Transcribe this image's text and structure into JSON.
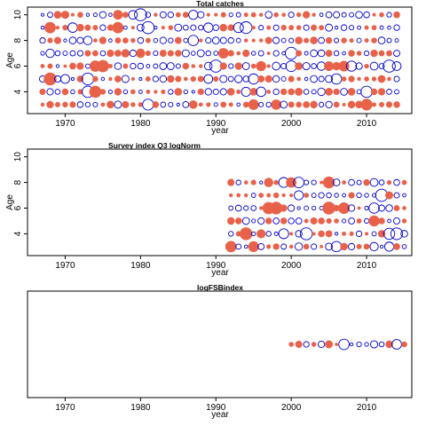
{
  "colors": {
    "positive": "#e8624a",
    "negative": "#0000cc",
    "axis": "#000000"
  },
  "chart_data": [
    {
      "type": "scatter",
      "subtype": "bubble-residuals",
      "title": "Total catches",
      "xlabel": "year",
      "ylabel": "Age",
      "xlim": [
        1965,
        2016
      ],
      "ylim": [
        2.3,
        10.6
      ],
      "x_ticks": [
        1970,
        1980,
        1990,
        2000,
        2010
      ],
      "y_ticks": [
        4,
        6,
        8,
        10
      ],
      "years": [
        1967,
        2014
      ],
      "ages": [
        3,
        10
      ],
      "seed": 11
    },
    {
      "type": "scatter",
      "subtype": "bubble-residuals",
      "title": "Survey index Q3 logNorm",
      "xlabel": "year",
      "ylabel": "Age",
      "xlim": [
        1965,
        2016
      ],
      "ylim": [
        2.3,
        10.6
      ],
      "x_ticks": [
        1970,
        1980,
        1990,
        2000,
        2010
      ],
      "y_ticks": [
        4,
        6,
        8,
        10
      ],
      "years": [
        1992,
        2015
      ],
      "ages": [
        3,
        8
      ],
      "seed": 29
    },
    {
      "type": "scatter",
      "subtype": "bubble-residuals",
      "title": "logFSBindex",
      "xlabel": "year",
      "ylabel": "",
      "xlim": [
        1965,
        2016
      ],
      "ylim": [
        0,
        2
      ],
      "x_ticks": [
        1970,
        1980,
        1990,
        2000,
        2010
      ],
      "y_ticks": [],
      "years": [
        2000,
        2015
      ],
      "ages": [
        1,
        1
      ],
      "seed": 47
    }
  ]
}
